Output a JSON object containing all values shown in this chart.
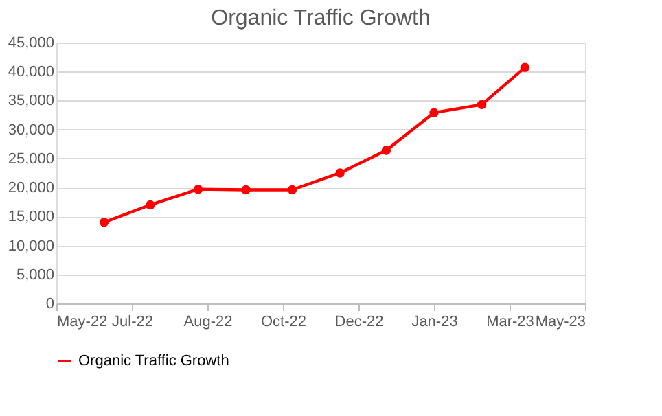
{
  "chart_data": {
    "type": "line",
    "title": "Organic Traffic Growth",
    "x": [
      "2022-06-25",
      "2022-07-25",
      "2022-08-25",
      "2022-09-25",
      "2022-10-25",
      "2022-11-25",
      "2022-12-25",
      "2023-01-25",
      "2023-02-25",
      "2023-03-25"
    ],
    "series": [
      {
        "name": "Organic Traffic Growth",
        "color": "#ff0000",
        "values": [
          14000,
          17000,
          19700,
          19600,
          19600,
          22500,
          26400,
          32900,
          34300,
          40700
        ]
      }
    ],
    "xlim": [
      "2022-05-25",
      "2023-05-03"
    ],
    "xticks": [
      {
        "value": "2022-05-25",
        "label": "May-22"
      },
      {
        "value": "2022-07-13",
        "label": "Jul-22"
      },
      {
        "value": "2022-08-31",
        "label": "Aug-22"
      },
      {
        "value": "2022-10-19",
        "label": "Oct-22"
      },
      {
        "value": "2022-12-07",
        "label": "Dec-22"
      },
      {
        "value": "2023-01-25",
        "label": "Jan-23"
      },
      {
        "value": "2023-03-15",
        "label": "Mar-23"
      },
      {
        "value": "2023-05-03",
        "label": "May-23"
      }
    ],
    "ylim": [
      0,
      45000
    ],
    "yticks": [
      0,
      {
        "value": 5000,
        "label": "5,000"
      },
      {
        "value": 10000,
        "label": "10,000"
      },
      {
        "value": 15000,
        "label": "15,000"
      },
      {
        "value": 20000,
        "label": "20,000"
      },
      {
        "value": 25000,
        "label": "25,000"
      },
      {
        "value": 30000,
        "label": "30,000"
      },
      {
        "value": 35000,
        "label": "35,000"
      },
      {
        "value": 40000,
        "label": "40,000"
      },
      {
        "value": 45000,
        "label": "45,000"
      }
    ],
    "grid": "y",
    "legend": "bottom",
    "marker": "circle",
    "line_style": "solid"
  }
}
